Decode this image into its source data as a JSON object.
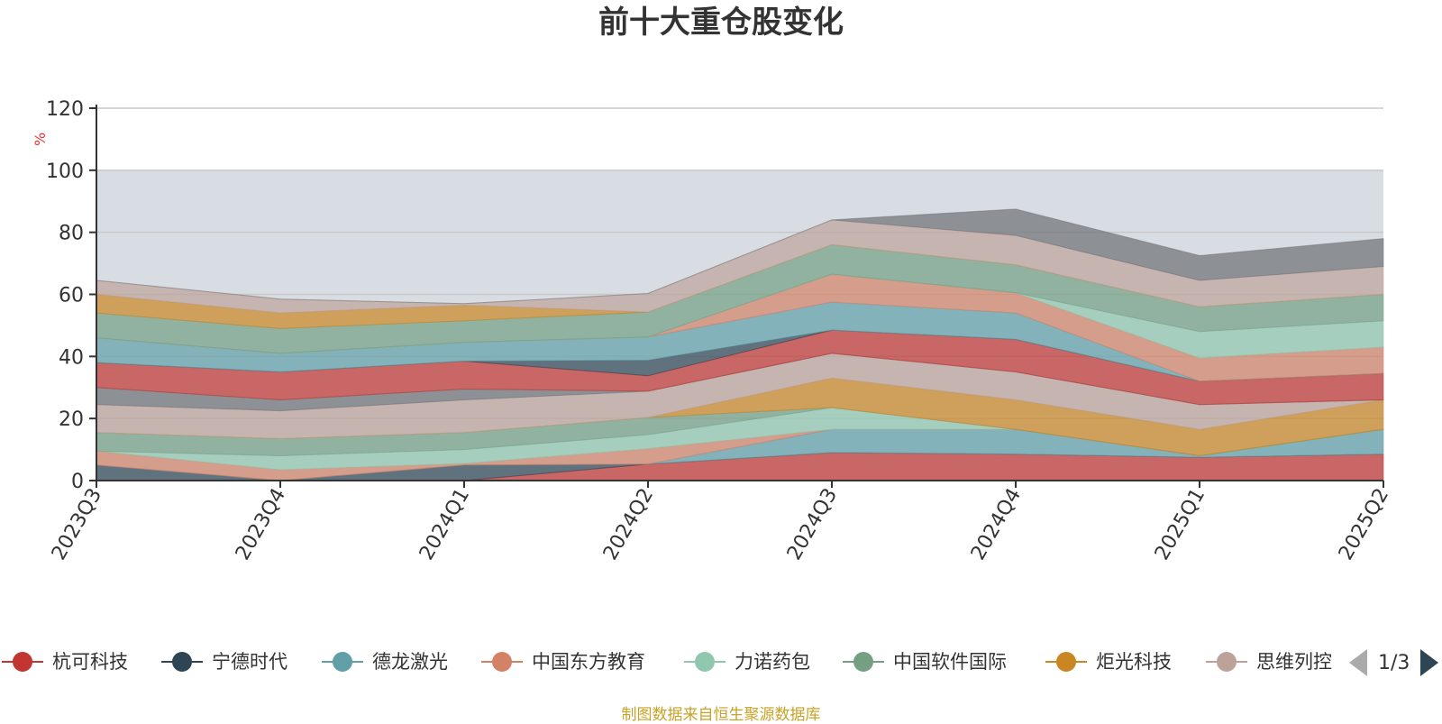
{
  "chart_data": {
    "type": "area",
    "title": "前十大重仓股变化",
    "ylabel": "%",
    "ylim": [
      0,
      120
    ],
    "yticks": [
      0,
      20,
      40,
      60,
      80,
      100,
      120
    ],
    "highlight_band": [
      0,
      100
    ],
    "categories": [
      "2023Q3",
      "2023Q4",
      "2024Q1",
      "2024Q2",
      "2024Q3",
      "2024Q4",
      "2025Q1",
      "2025Q2"
    ],
    "legend": {
      "visible": [
        "杭可科技",
        "宁德时代",
        "德龙激光",
        "中国东方教育",
        "力诺药包",
        "中国软件国际",
        "炬光科技",
        "思维列控"
      ],
      "page": "1/3"
    },
    "series": [
      {
        "name": "杭可科技",
        "color": "#c23531",
        "values": [
          0,
          0,
          0,
          5.3,
          9.0,
          8.5,
          7.5,
          8.5
        ]
      },
      {
        "name": "宁德时代",
        "color": "#2f4554",
        "values": [
          5.0,
          0,
          5.0,
          0,
          0,
          0,
          0,
          0
        ]
      },
      {
        "name": "德龙激光",
        "color": "#61a0a8",
        "values": [
          0,
          0,
          0,
          0,
          7.5,
          8.0,
          0.5,
          8.0
        ]
      },
      {
        "name": "中国东方教育",
        "color": "#d48265",
        "values": [
          4.5,
          3.5,
          0.5,
          5.0,
          0,
          0,
          0,
          0
        ]
      },
      {
        "name": "力诺药包",
        "color": "#91c7ae",
        "values": [
          0,
          4.5,
          4.5,
          4.5,
          7.0,
          0,
          0,
          0
        ]
      },
      {
        "name": "中国软件国际",
        "color": "#749f83",
        "values": [
          6.0,
          5.5,
          5.5,
          5.5,
          0,
          0,
          0,
          0
        ]
      },
      {
        "name": "炬光科技",
        "color": "#ca8622",
        "values": [
          0,
          0,
          0,
          0,
          9.5,
          9.5,
          8.5,
          9.5
        ]
      },
      {
        "name": "思维列控",
        "color": "#bda29a",
        "values": [
          9.0,
          9.0,
          10.5,
          8.5,
          8.0,
          9.0,
          8.0,
          0
        ]
      },
      {
        "name": "",
        "color": "#6e7074",
        "values": [
          5.5,
          3.5,
          3.5,
          0,
          0,
          0,
          0,
          0
        ]
      },
      {
        "name": "",
        "color": "#c23531",
        "values": [
          8.0,
          9.0,
          9.0,
          5.0,
          7.5,
          10.5,
          7.5,
          8.5
        ]
      },
      {
        "name": "",
        "color": "#2f4554",
        "values": [
          0,
          0,
          0,
          5.0,
          0,
          0,
          0,
          0
        ]
      },
      {
        "name": "",
        "color": "#61a0a8",
        "values": [
          8.0,
          6.0,
          6.0,
          7.5,
          9.0,
          8.5,
          0,
          0
        ]
      },
      {
        "name": "",
        "color": "#d48265",
        "values": [
          0,
          0,
          0,
          0,
          9.0,
          6.5,
          7.5,
          8.5
        ]
      },
      {
        "name": "",
        "color": "#91c7ae",
        "values": [
          0,
          0,
          0,
          0,
          0,
          0,
          8.5,
          8.5
        ]
      },
      {
        "name": "",
        "color": "#749f83",
        "values": [
          8.0,
          8.0,
          7.0,
          8.0,
          9.5,
          9.0,
          8.0,
          8.5
        ]
      },
      {
        "name": "",
        "color": "#ca8622",
        "values": [
          6.0,
          5.0,
          5.0,
          0,
          0,
          0,
          0,
          0
        ]
      },
      {
        "name": "",
        "color": "#bda29a",
        "values": [
          4.5,
          4.5,
          0.5,
          6.0,
          8.0,
          9.5,
          8.5,
          9.0
        ]
      },
      {
        "name": "",
        "color": "#6e7074",
        "values": [
          0,
          0,
          0,
          0,
          0,
          8.5,
          8.0,
          9.0
        ]
      }
    ]
  },
  "source_note": "制图数据来自恒生聚源数据库"
}
